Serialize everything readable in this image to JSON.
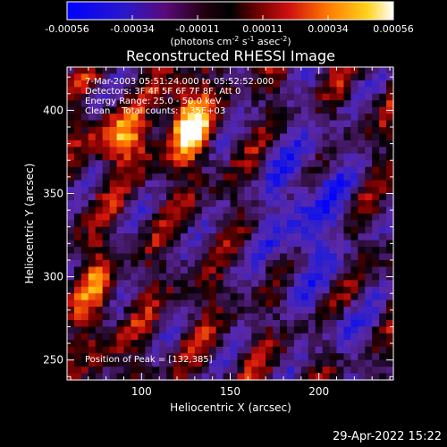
{
  "colorbar": {
    "ticks": [
      "-0.00056",
      "-0.00034",
      "-0.00011",
      "0.00011",
      "0.00034",
      "0.00056"
    ],
    "unit_main": "(photons cm",
    "unit_sup1": "-2",
    "unit_mid": " s",
    "unit_sup2": "-1",
    "unit_mid2": " asec",
    "unit_sup3": "-2",
    "unit_end": ")"
  },
  "chart_data": {
    "type": "heatmap",
    "title": "Reconstructed RHESSI Image",
    "xlabel": "Heliocentric X (arcsec)",
    "ylabel": "Heliocentric Y (arcsec)",
    "xlim": [
      58,
      242
    ],
    "ylim": [
      238,
      426
    ],
    "xticks": [
      100,
      150,
      200
    ],
    "yticks": [
      250,
      300,
      350,
      400
    ],
    "vmin": -0.00056,
    "vmax": 0.00056,
    "colormap": [
      "#0000ff",
      "#5a2fb2",
      "#3a1a4a",
      "#000000",
      "#c01010",
      "#ff7a00",
      "#ffd21a",
      "#ffffff"
    ],
    "peak": [
      132,
      385
    ],
    "grid_cells": {
      "nx": 46,
      "ny": 47
    }
  },
  "annotations": {
    "line1": "7-Mar-2003 05:51:24.000 to 05:52:52.000",
    "line2": "Detectors: 3F 4F 5F 6F 7F 8F, Att 0",
    "line3": "Energy Range: 25.0 - 50.0 keV",
    "line4": "Clean    Total counts: 1.35E+03",
    "peak_label": "Position of Peak = [132,385]"
  },
  "footer": {
    "timestamp": "29-Apr-2022 15:22"
  }
}
